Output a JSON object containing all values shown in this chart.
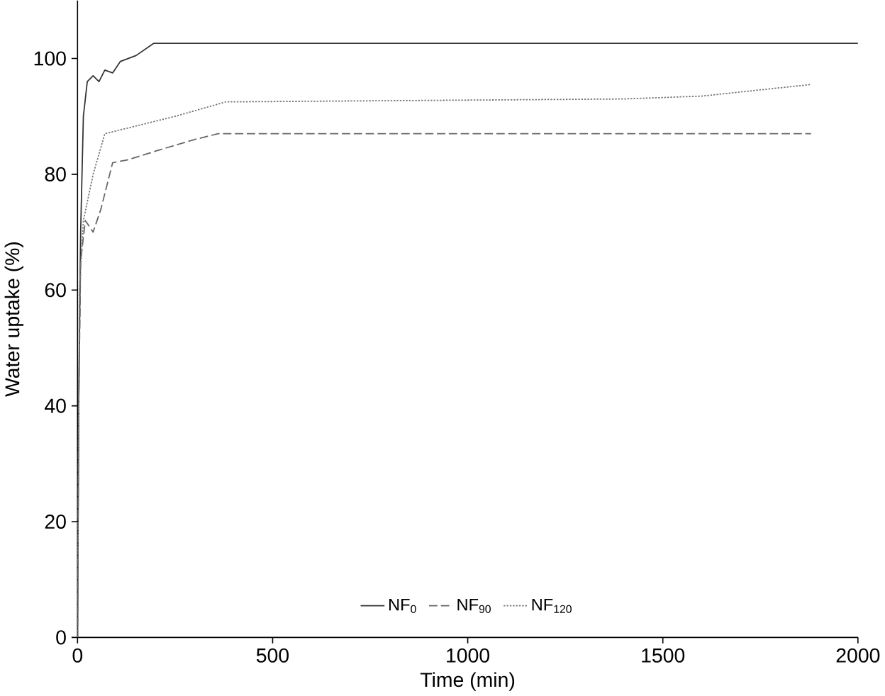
{
  "chart_data": {
    "type": "line",
    "xlabel": "Time (min)",
    "ylabel": "Water uptake (%)",
    "xlim": [
      0,
      2000
    ],
    "ylim": [
      0,
      110
    ],
    "xticks": [
      0,
      500,
      1000,
      1500,
      2000
    ],
    "yticks": [
      0,
      20,
      40,
      60,
      80,
      100
    ],
    "legend": "bottom",
    "grid": false,
    "marker": "none",
    "series": [
      {
        "name": "NF$_{0}$",
        "color": "#333333",
        "line_style": "solid",
        "x": [
          0,
          3,
          8,
          15,
          25,
          40,
          55,
          70,
          90,
          110,
          150,
          195,
          2000
        ],
        "values": [
          0,
          40,
          70,
          90,
          96,
          97,
          96,
          98,
          97.5,
          99.5,
          100.5,
          102.6,
          102.6
        ]
      },
      {
        "name": "NF$_{90}$",
        "color": "#666666",
        "line_style": "dashed",
        "x": [
          0,
          3,
          8,
          20,
          40,
          60,
          90,
          130,
          200,
          300,
          360,
          1880
        ],
        "values": [
          0,
          40,
          65,
          72,
          70,
          74,
          82,
          82.5,
          84,
          86,
          87,
          87
        ]
      },
      {
        "name": "NF$_{120}$",
        "color": "#777777",
        "line_style": "dotted",
        "x": [
          0,
          5,
          15,
          40,
          70,
          130,
          250,
          380,
          1400,
          1600,
          1880
        ],
        "values": [
          0,
          60,
          72,
          80,
          87,
          88,
          90,
          92.5,
          93,
          93.5,
          95.5
        ]
      }
    ]
  }
}
